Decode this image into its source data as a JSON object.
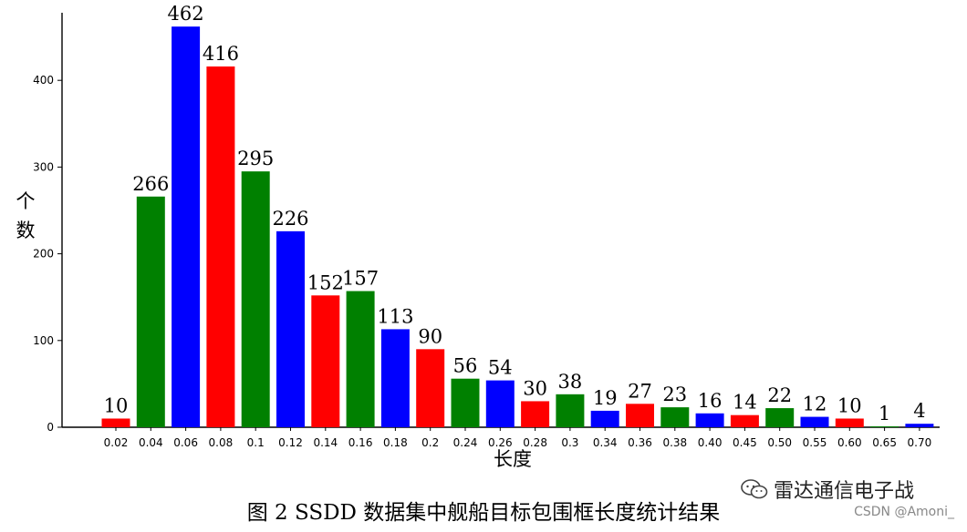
{
  "chart_data": {
    "type": "bar",
    "categories": [
      "0.02",
      "0.04",
      "0.06",
      "0.08",
      "0.1",
      "0.12",
      "0.14",
      "0.16",
      "0.18",
      "0.2",
      "0.24",
      "0.26",
      "0.28",
      "0.3",
      "0.34",
      "0.36",
      "0.38",
      "0.40",
      "0.45",
      "0.50",
      "0.55",
      "0.60",
      "0.65",
      "0.70"
    ],
    "values": [
      10,
      266,
      462,
      416,
      295,
      226,
      152,
      157,
      113,
      90,
      56,
      54,
      30,
      38,
      19,
      27,
      23,
      16,
      14,
      22,
      12,
      10,
      1,
      4
    ],
    "data_labels": [
      "10",
      "266",
      "462",
      "416",
      "295",
      "226",
      "152",
      "157",
      "113",
      "90",
      "56",
      "54",
      "30",
      "38",
      "19",
      "27",
      "23",
      "16",
      "14",
      "22",
      "12",
      "10",
      "1",
      "4"
    ],
    "bar_colors": [
      "#ff0000",
      "#008000",
      "#0000ff",
      "#ff0000",
      "#008000",
      "#0000ff",
      "#ff0000",
      "#008000",
      "#0000ff",
      "#ff0000",
      "#008000",
      "#0000ff",
      "#ff0000",
      "#008000",
      "#0000ff",
      "#ff0000",
      "#008000",
      "#0000ff",
      "#ff0000",
      "#008000",
      "#0000ff",
      "#ff0000",
      "#008000",
      "#0000ff"
    ],
    "title": "",
    "xlabel": "长度",
    "ylabel": "个数",
    "ylim": [
      0,
      480
    ],
    "yticks": [
      0,
      100,
      200,
      300,
      400
    ],
    "grid": false,
    "legend": "none"
  },
  "caption": "图 2 SSDD 数据集中舰船目标包围框长度统计结果",
  "watermark": {
    "icon": "wechat-icon",
    "text": "雷达通信电子战"
  },
  "credit": "CSDN @Amoni_"
}
